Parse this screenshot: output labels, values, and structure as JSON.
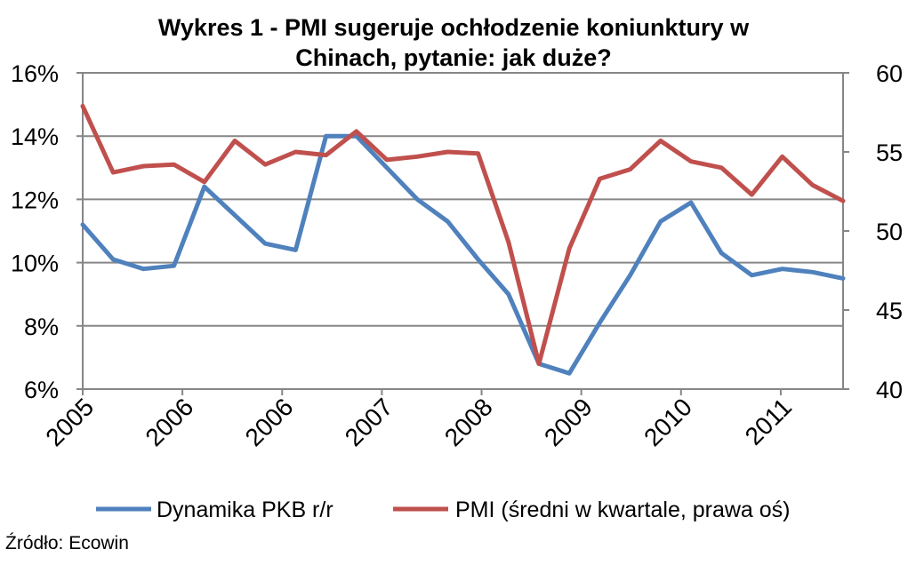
{
  "chart_data": {
    "type": "line",
    "title_line1": "Wykres 1 - PMI sugeruje ochłodzenie koniunktury w",
    "title_line2": "Chinach, pytanie: jak duże?",
    "x_tick_labels": [
      "2005",
      "2006",
      "2006",
      "2007",
      "2008",
      "2009",
      "2010",
      "2011"
    ],
    "y_left": {
      "range": [
        6,
        16
      ],
      "ticks": [
        "6%",
        "8%",
        "10%",
        "12%",
        "14%",
        "16%"
      ],
      "tick_values": [
        6,
        8,
        10,
        12,
        14,
        16
      ]
    },
    "y_right": {
      "range": [
        40,
        60
      ],
      "ticks": [
        "40",
        "45",
        "50",
        "55",
        "60"
      ],
      "tick_values": [
        40,
        45,
        50,
        55,
        60
      ]
    },
    "grid": true,
    "legend_placement": "bottom",
    "series": [
      {
        "name": "Dynamika PKB r/r",
        "axis": "left",
        "color": "#4F81BD",
        "values": [
          11.2,
          10.1,
          9.8,
          9.9,
          12.4,
          11.5,
          10.6,
          10.4,
          14.0,
          14.0,
          13.0,
          12.0,
          11.3,
          10.1,
          9.0,
          6.8,
          6.5,
          8.1,
          9.6,
          11.3,
          11.9,
          10.3,
          9.6,
          9.8,
          9.7,
          9.5
        ]
      },
      {
        "name": "PMI (średni w kwartale, prawa oś)",
        "axis": "right",
        "color": "#C0504D",
        "values": [
          57.9,
          53.7,
          54.1,
          54.2,
          53.1,
          55.7,
          54.2,
          55.0,
          54.8,
          56.3,
          54.5,
          54.7,
          55.0,
          54.9,
          49.3,
          41.6,
          48.9,
          53.3,
          53.9,
          55.7,
          54.4,
          54.0,
          52.3,
          54.7,
          52.9,
          51.9
        ]
      }
    ]
  },
  "source": "Źródło: Ecowin"
}
